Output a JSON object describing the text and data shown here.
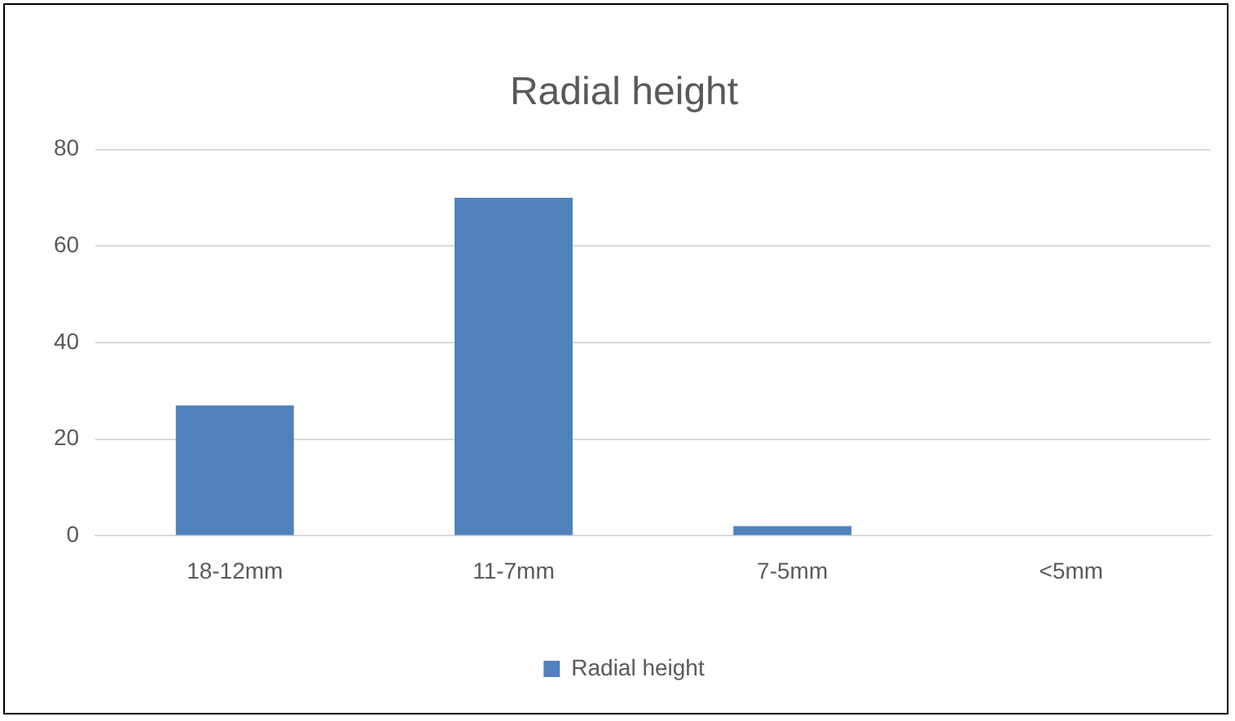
{
  "chart_data": {
    "type": "bar",
    "title": "Radial height",
    "categories": [
      "18-12mm",
      "11-7mm",
      "7-5mm",
      "<5mm"
    ],
    "series": [
      {
        "name": "Radial height",
        "color": "#4f81bd",
        "values": [
          27,
          70,
          2,
          0
        ]
      }
    ],
    "ylim": [
      0,
      80
    ],
    "yticks": [
      0,
      20,
      40,
      60,
      80
    ],
    "grid": "y",
    "legend": "bottom"
  }
}
